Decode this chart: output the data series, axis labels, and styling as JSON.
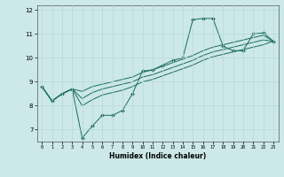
{
  "xlabel": "Humidex (Indice chaleur)",
  "ylabel": "",
  "bg_color": "#cce8e8",
  "line_color": "#1a6b5e",
  "xlim": [
    -0.5,
    23.5
  ],
  "ylim": [
    6.5,
    12.2
  ],
  "yticks": [
    7,
    8,
    9,
    10,
    11,
    12
  ],
  "xticks": [
    0,
    1,
    2,
    3,
    4,
    5,
    6,
    7,
    8,
    9,
    10,
    11,
    12,
    13,
    14,
    15,
    16,
    17,
    18,
    19,
    20,
    21,
    22,
    23
  ],
  "grid_color": "#b8d8d8",
  "series": [
    {
      "x": [
        0,
        1,
        2,
        3,
        4,
        5,
        6,
        7,
        8,
        9,
        10,
        11,
        12,
        13,
        14,
        15,
        16,
        17,
        18,
        19,
        20,
        21,
        22,
        23
      ],
      "y": [
        8.8,
        8.2,
        8.5,
        8.7,
        6.65,
        7.15,
        7.6,
        7.6,
        7.8,
        8.5,
        9.45,
        9.5,
        9.7,
        9.9,
        10.0,
        11.6,
        11.65,
        11.65,
        10.5,
        10.3,
        10.3,
        11.0,
        11.05,
        10.7
      ],
      "marker": "D",
      "markersize": 2.0,
      "lw": 0.7
    },
    {
      "x": [
        0,
        1,
        2,
        3,
        4,
        5,
        6,
        7,
        8,
        9,
        10,
        11,
        12,
        13,
        14,
        15,
        16,
        17,
        18,
        19,
        20,
        21,
        22,
        23
      ],
      "y": [
        8.8,
        8.2,
        8.5,
        8.7,
        8.6,
        8.8,
        8.9,
        9.0,
        9.1,
        9.2,
        9.4,
        9.5,
        9.65,
        9.8,
        9.95,
        10.1,
        10.3,
        10.45,
        10.55,
        10.65,
        10.75,
        10.85,
        10.95,
        10.7
      ],
      "marker": "",
      "markersize": 0,
      "lw": 0.7
    },
    {
      "x": [
        0,
        1,
        2,
        3,
        4,
        5,
        6,
        7,
        8,
        9,
        10,
        11,
        12,
        13,
        14,
        15,
        16,
        17,
        18,
        19,
        20,
        21,
        22,
        23
      ],
      "y": [
        8.8,
        8.2,
        8.5,
        8.7,
        8.3,
        8.55,
        8.7,
        8.8,
        8.9,
        9.0,
        9.2,
        9.3,
        9.45,
        9.6,
        9.75,
        9.9,
        10.1,
        10.25,
        10.35,
        10.45,
        10.55,
        10.65,
        10.75,
        10.7
      ],
      "marker": "",
      "markersize": 0,
      "lw": 0.7
    },
    {
      "x": [
        0,
        1,
        2,
        3,
        4,
        5,
        6,
        7,
        8,
        9,
        10,
        11,
        12,
        13,
        14,
        15,
        16,
        17,
        18,
        19,
        20,
        21,
        22,
        23
      ],
      "y": [
        8.8,
        8.2,
        8.5,
        8.7,
        8.0,
        8.25,
        8.45,
        8.55,
        8.65,
        8.8,
        9.0,
        9.1,
        9.25,
        9.4,
        9.55,
        9.7,
        9.9,
        10.05,
        10.15,
        10.25,
        10.35,
        10.45,
        10.55,
        10.7
      ],
      "marker": "",
      "markersize": 0,
      "lw": 0.7
    }
  ]
}
